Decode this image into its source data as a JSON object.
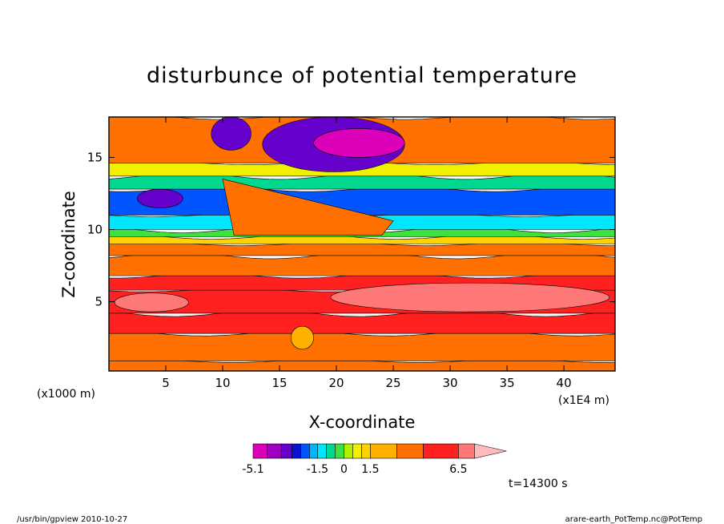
{
  "chart_data": {
    "type": "heatmap",
    "title": "disturbunce of potential temperature",
    "xlabel": "X-coordinate",
    "ylabel": "Z-coordinate",
    "x_units": "(x1E4 m)",
    "y_units": "(x1000 m)",
    "xlim": [
      0,
      44.5
    ],
    "ylim": [
      0.2,
      17.8
    ],
    "x_ticks": [
      "5",
      "10",
      "15",
      "20",
      "25",
      "30",
      "35",
      "40"
    ],
    "x_tick_values": [
      5,
      10,
      15,
      20,
      25,
      30,
      35,
      40
    ],
    "y_ticks": [
      "5",
      "10",
      "15"
    ],
    "y_tick_values": [
      5,
      10,
      15
    ],
    "colorbar": {
      "levels": [
        -5.1,
        -4.3,
        -3.5,
        -2.9,
        -2.4,
        -1.9,
        -1.5,
        -1.0,
        -0.5,
        0,
        0.5,
        1.0,
        1.5,
        3.0,
        4.5,
        6.5
      ],
      "colors": [
        "#dd00bb",
        "#a000c0",
        "#6600cc",
        "#0a14d0",
        "#0055ff",
        "#00b4ff",
        "#00e6ff",
        "#00d890",
        "#40e040",
        "#aef000",
        "#f0f000",
        "#ffd200",
        "#ffb000",
        "#ff7000",
        "#ff2020",
        "#ff7878",
        "#ffbaba"
      ],
      "labels": [
        "-5.1",
        "-1.5",
        "0",
        "1.5",
        "6.5"
      ],
      "label_values": [
        -5.1,
        -1.5,
        0,
        1.5,
        6.5
      ]
    },
    "bands": [
      {
        "z": [
          0.2,
          0.9
        ],
        "value": 2.2,
        "color": "#ff7000"
      },
      {
        "z": [
          0.9,
          2.8
        ],
        "value": 2.0,
        "color": "#ff7000"
      },
      {
        "z": [
          2.8,
          4.2
        ],
        "value": 4.0,
        "color": "#ff2020"
      },
      {
        "z": [
          4.2,
          5.8
        ],
        "value": 5.0,
        "color": "#ff2020"
      },
      {
        "z": [
          5.8,
          6.8
        ],
        "value": 4.2,
        "color": "#ff2020"
      },
      {
        "z": [
          6.8,
          8.2
        ],
        "value": 2.5,
        "color": "#ff7000"
      },
      {
        "z": [
          8.2,
          9.0
        ],
        "value": 1.6,
        "color": "#ff7000"
      },
      {
        "z": [
          9.0,
          9.5
        ],
        "value": 1.0,
        "color": "#ffd200"
      },
      {
        "z": [
          9.5,
          10.0
        ],
        "value": 0.3,
        "color": "#40e040"
      },
      {
        "z": [
          10.0,
          11.0
        ],
        "value": -1.2,
        "color": "#00e6ff"
      },
      {
        "z": [
          11.0,
          12.8
        ],
        "value": -2.0,
        "color": "#0055ff"
      },
      {
        "z": [
          12.8,
          13.7
        ],
        "value": -0.8,
        "color": "#00d890"
      },
      {
        "z": [
          13.7,
          14.6
        ],
        "value": 0.6,
        "color": "#f0f000"
      },
      {
        "z": [
          14.6,
          17.8
        ],
        "value": 1.8,
        "color": "#ff7000"
      }
    ],
    "features": [
      {
        "kind": "warm-core",
        "x": [
          0.5,
          7
        ],
        "z": [
          4.3,
          5.6
        ],
        "value": 5.8,
        "color": "#ff7878"
      },
      {
        "kind": "warm-core",
        "x": [
          19.5,
          44
        ],
        "z": [
          4.3,
          6.3
        ],
        "value": 6.0,
        "color": "#ff7878"
      },
      {
        "kind": "cold-anomaly",
        "x": [
          13.5,
          26
        ],
        "z": [
          14.0,
          17.8
        ],
        "value": -3.8,
        "color": "#6600cc"
      },
      {
        "kind": "cold-core",
        "x": [
          18,
          26
        ],
        "z": [
          15.0,
          17.0
        ],
        "value": -5.1,
        "color": "#dd00bb"
      },
      {
        "kind": "cold-core",
        "x": [
          9,
          12.5
        ],
        "z": [
          15.5,
          17.8
        ],
        "value": -3.5,
        "color": "#6600cc"
      },
      {
        "kind": "cold-core",
        "x": [
          2.5,
          6.5
        ],
        "z": [
          11.5,
          12.8
        ],
        "value": -3.0,
        "color": "#6600cc"
      },
      {
        "kind": "warm-wedge",
        "x": [
          10,
          25
        ],
        "z": [
          9.6,
          13.5
        ],
        "value": 1.8,
        "color": "#ff7000"
      },
      {
        "kind": "warm-blob",
        "x": [
          16,
          18
        ],
        "z": [
          1.7,
          3.3
        ],
        "value": 3.0,
        "color": "#ffb000"
      }
    ],
    "time_label": "t=14300 s",
    "footer_left": "/usr/bin/gpview   2010-10-27",
    "footer_right": "arare-earth_PotTemp.nc@PotTemp"
  }
}
